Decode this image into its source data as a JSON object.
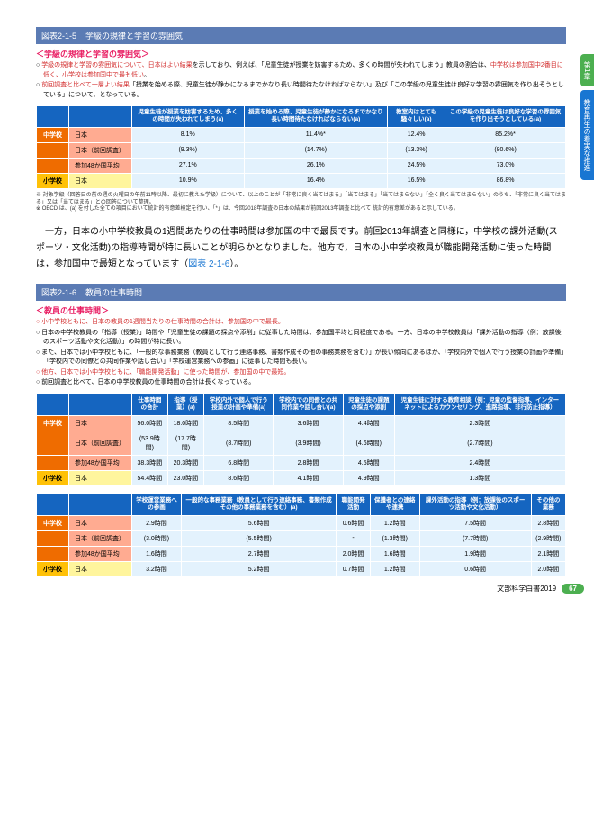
{
  "sideTab": {
    "chapter": "第1章",
    "title": "教育再生の着実な推進"
  },
  "fig215": {
    "num": "図表2-1-5",
    "title": "学級の規律と学習の雰囲気",
    "subheader": "＜学級の規律と学習の雰囲気＞",
    "bullets": [
      {
        "lead": "○ ",
        "red": "学級の規律と学習の雰囲気について、日本はよい結果",
        "rest": "を示しており、例えば、「児童生徒が授業を妨害するため、多くの時間が失われてしまう」教員の割合は、",
        "red2": "中学校は参加国中2番目に低く、小学校は参加国中で最も低い",
        "rest2": "。"
      },
      {
        "lead": "○ ",
        "rest": "「授業を始める際、児童生徒が静かになるまでかなり長い時間待たなければならない」及び「この学級の児童生徒は良好な学習の雰囲気を作り出そうとしている」について、",
        "red": "前回調査と比べて一層よい結果",
        "rest2": "となっている。"
      }
    ],
    "headers": [
      "",
      "",
      "児童生徒が授業を妨害するため、多くの時間が失われてしまう(a)",
      "授業を始める際、児童生徒が静かになるまでかなり長い時間待たなければならない(a)",
      "教室内はとても騒々しい(a)",
      "この学級の児童生徒は良好な学習の雰囲気を作り出そうとしている(a)"
    ],
    "rows": [
      {
        "cat": "中学校",
        "sub": "日本",
        "v": [
          "8.1%",
          "11.4%*",
          "12.4%",
          "85.2%*"
        ],
        "cls": "orange"
      },
      {
        "cat": "",
        "sub": "日本（前回調査）",
        "v": [
          "(9.3%)",
          "(14.7%)",
          "(13.3%)",
          "(80.6%)"
        ],
        "cls": "orange"
      },
      {
        "cat": "",
        "sub": "参加48か国平均",
        "v": [
          "27.1%",
          "26.1%",
          "24.5%",
          "73.0%"
        ],
        "cls": "orange"
      },
      {
        "cat": "小学校",
        "sub": "日本",
        "v": [
          "10.9%",
          "16.4%",
          "16.5%",
          "86.8%"
        ],
        "cls": "yellow"
      }
    ],
    "footnote": "※ 対象学級（回答日の前の週の火曜日の午前11時以降、最初に教えた学級）について、以上のことが「非常に良く当てはまる」「当てはまる」「当てはまらない」「全く良く当てはまらない」のうち、「非常に良く当てはまる」又は「当てはまる」との回答について整理。\n※ OECD は、(a) を付した全ての項目において統計的有意差検定を行い、「*」は、今回2018年調査の日本の結果が前回2013年調査と比べて 統計的有意差があると示している。"
  },
  "bodyPara": {
    "text": "一方，日本の小中学校教員の1週間あたりの仕事時間は参加国の中で最長です。前回2013年調査と同様に，中学校の課外活動(スポーツ・文化活動)の指導時間が特に長いことが明らかとなりました。他方で，日本の小中学校教員が職能開発活動に使った時間は，参加国中で最短となっています（",
    "link": "図表 2-1-6",
    "tail": "）。"
  },
  "fig216": {
    "num": "図表2-1-6",
    "title": "教員の仕事時間",
    "subheader": "＜教員の仕事時間＞",
    "bullets": [
      "○ 小中学校ともに、日本の教員の1週間当たりの仕事時間の合計は、参加国の中で最長。",
      "○ 日本の中学校教員の「指導（授業）」時間や「児童生徒の課題の採点や添削」に従事した時間は、参加国平均と同程度である。一方、日本の中学校教員は「課外活動の指導（例：放課後のスポーツ活動や文化活動）」の時間が特に長い。",
      "○ また、日本では小中学校ともに、「一般的な事務業務（教員として行う連絡事務、書類作成その他の事務業務を含む）」が長い傾向にあるほか、「学校内外で個人で行う授業の計画や準備」「学校内での同僚との共同作業や話し合い」「学校運営業務への参画」に従事した時間も長い。",
      "○ 他方、日本では小中学校ともに、「職能開発活動」に使った時間が、参加国の中で最短。",
      "○ 前回調査と比べて、日本の中学校教員の仕事時間の合計は長くなっている。"
    ],
    "table1": {
      "headers": [
        "",
        "",
        "仕事時間の合計",
        "指導（授業）(a)",
        "学校内外で個人で行う授業の計画や準備(a)",
        "学校内での同僚との共同作業や話し合い(a)",
        "児童生徒の課題の採点や添削",
        "児童生徒に対する教育相談（例：児童の監督指導、インターネットによるカウンセリング、進路指導、非行防止指導）"
      ],
      "rows": [
        {
          "cat": "中学校",
          "sub": "日本",
          "v": [
            "56.0時間",
            "18.0時間",
            "8.5時間",
            "3.6時間",
            "4.4時間",
            "2.3時間"
          ],
          "cls": "orange"
        },
        {
          "cat": "",
          "sub": "日本（前回調査）",
          "v": [
            "(53.9時間)",
            "(17.7時間)",
            "(8.7時間)",
            "(3.9時間)",
            "(4.6時間)",
            "(2.7時間)"
          ],
          "cls": "orange"
        },
        {
          "cat": "",
          "sub": "参加48か国平均",
          "v": [
            "38.3時間",
            "20.3時間",
            "6.8時間",
            "2.8時間",
            "4.5時間",
            "2.4時間"
          ],
          "cls": "orange"
        },
        {
          "cat": "小学校",
          "sub": "日本",
          "v": [
            "54.4時間",
            "23.0時間",
            "8.6時間",
            "4.1時間",
            "4.9時間",
            "1.3時間"
          ],
          "cls": "yellow"
        }
      ]
    },
    "table2": {
      "headers": [
        "",
        "",
        "学校運営業務への参画",
        "一般的な事務業務（教員として行う連絡事務、書類作成その他の事務業務を含む）(a)",
        "職能開発活動",
        "保護者との連絡や連携",
        "課外活動の指導（例：放課後のスポーツ活動や文化活動）",
        "その他の業務"
      ],
      "rows": [
        {
          "cat": "中学校",
          "sub": "日本",
          "v": [
            "2.9時間",
            "5.6時間",
            "0.6時間",
            "1.2時間",
            "7.5時間",
            "2.8時間"
          ],
          "cls": "orange"
        },
        {
          "cat": "",
          "sub": "日本（前回調査）",
          "v": [
            "(3.0時間)",
            "(5.5時間)",
            "-",
            "(1.3時間)",
            "(7.7時間)",
            "(2.9時間)"
          ],
          "cls": "orange"
        },
        {
          "cat": "",
          "sub": "参加48か国平均",
          "v": [
            "1.6時間",
            "2.7時間",
            "2.0時間",
            "1.6時間",
            "1.9時間",
            "2.1時間"
          ],
          "cls": "orange"
        },
        {
          "cat": "小学校",
          "sub": "日本",
          "v": [
            "3.2時間",
            "5.2時間",
            "0.7時間",
            "1.2時間",
            "0.6時間",
            "2.0時間"
          ],
          "cls": "yellow"
        }
      ]
    }
  },
  "footer": {
    "source": "文部科学白書2019",
    "page": "67"
  }
}
